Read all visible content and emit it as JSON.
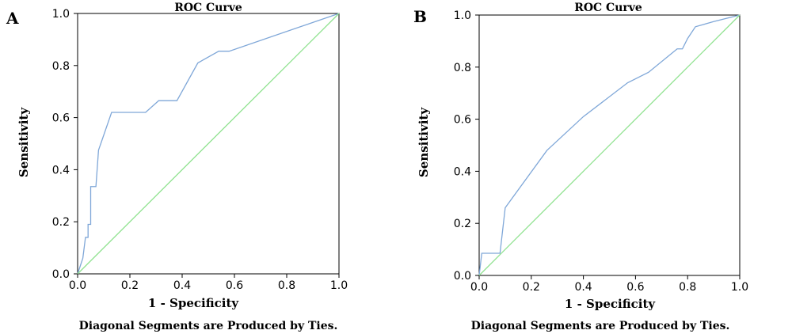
{
  "chart_data": [
    {
      "panel": "A",
      "type": "line",
      "title": "ROC Curve",
      "xlabel": "1 - Specificity",
      "ylabel": "Sensitivity",
      "xlim": [
        0,
        1
      ],
      "ylim": [
        0,
        1
      ],
      "x_ticks": [
        "0.0",
        "0.2",
        "0.4",
        "0.6",
        "0.8",
        "1.0"
      ],
      "y_ticks": [
        "0.0",
        "0.2",
        "0.4",
        "0.6",
        "0.8",
        "1.0"
      ],
      "footnote": "Diagonal Segments are Produced by Ties.",
      "grid": false,
      "series": [
        {
          "color": "#7fa7d8",
          "x": [
            0.0,
            0.01,
            0.02,
            0.025,
            0.03,
            0.03,
            0.04,
            0.04,
            0.05,
            0.05,
            0.065,
            0.07,
            0.08,
            0.13,
            0.26,
            0.31,
            0.38,
            0.46,
            0.54,
            0.58,
            1.0
          ],
          "y": [
            0.0,
            0.03,
            0.06,
            0.1,
            0.14,
            0.14,
            0.14,
            0.19,
            0.19,
            0.335,
            0.335,
            0.335,
            0.475,
            0.62,
            0.62,
            0.665,
            0.665,
            0.81,
            0.855,
            0.855,
            1.0
          ]
        },
        {
          "color": "#8fe28f",
          "x": [
            0,
            1
          ],
          "y": [
            0,
            1
          ]
        }
      ]
    },
    {
      "panel": "B",
      "type": "line",
      "title": "ROC Curve",
      "xlabel": "1 - Specificity",
      "ylabel": "Sensitivity",
      "xlim": [
        0,
        1
      ],
      "ylim": [
        0,
        1
      ],
      "x_ticks": [
        "0.0",
        "0.2",
        "0.4",
        "0.6",
        "0.8",
        "1.0"
      ],
      "y_ticks": [
        "0.0",
        "0.2",
        "0.4",
        "0.6",
        "0.8",
        "1.0"
      ],
      "footnote": "Diagonal Segments are Produced by Ties.",
      "grid": false,
      "series": [
        {
          "color": "#7fa7d8",
          "x": [
            0.0,
            0.01,
            0.07,
            0.08,
            0.1,
            0.26,
            0.4,
            0.57,
            0.65,
            0.76,
            0.78,
            0.8,
            0.83,
            0.9,
            1.0
          ],
          "y": [
            0.0,
            0.085,
            0.085,
            0.085,
            0.26,
            0.48,
            0.61,
            0.74,
            0.78,
            0.87,
            0.87,
            0.91,
            0.955,
            0.975,
            1.0
          ]
        },
        {
          "color": "#8fe28f",
          "x": [
            0,
            1
          ],
          "y": [
            0,
            1
          ]
        }
      ]
    }
  ]
}
